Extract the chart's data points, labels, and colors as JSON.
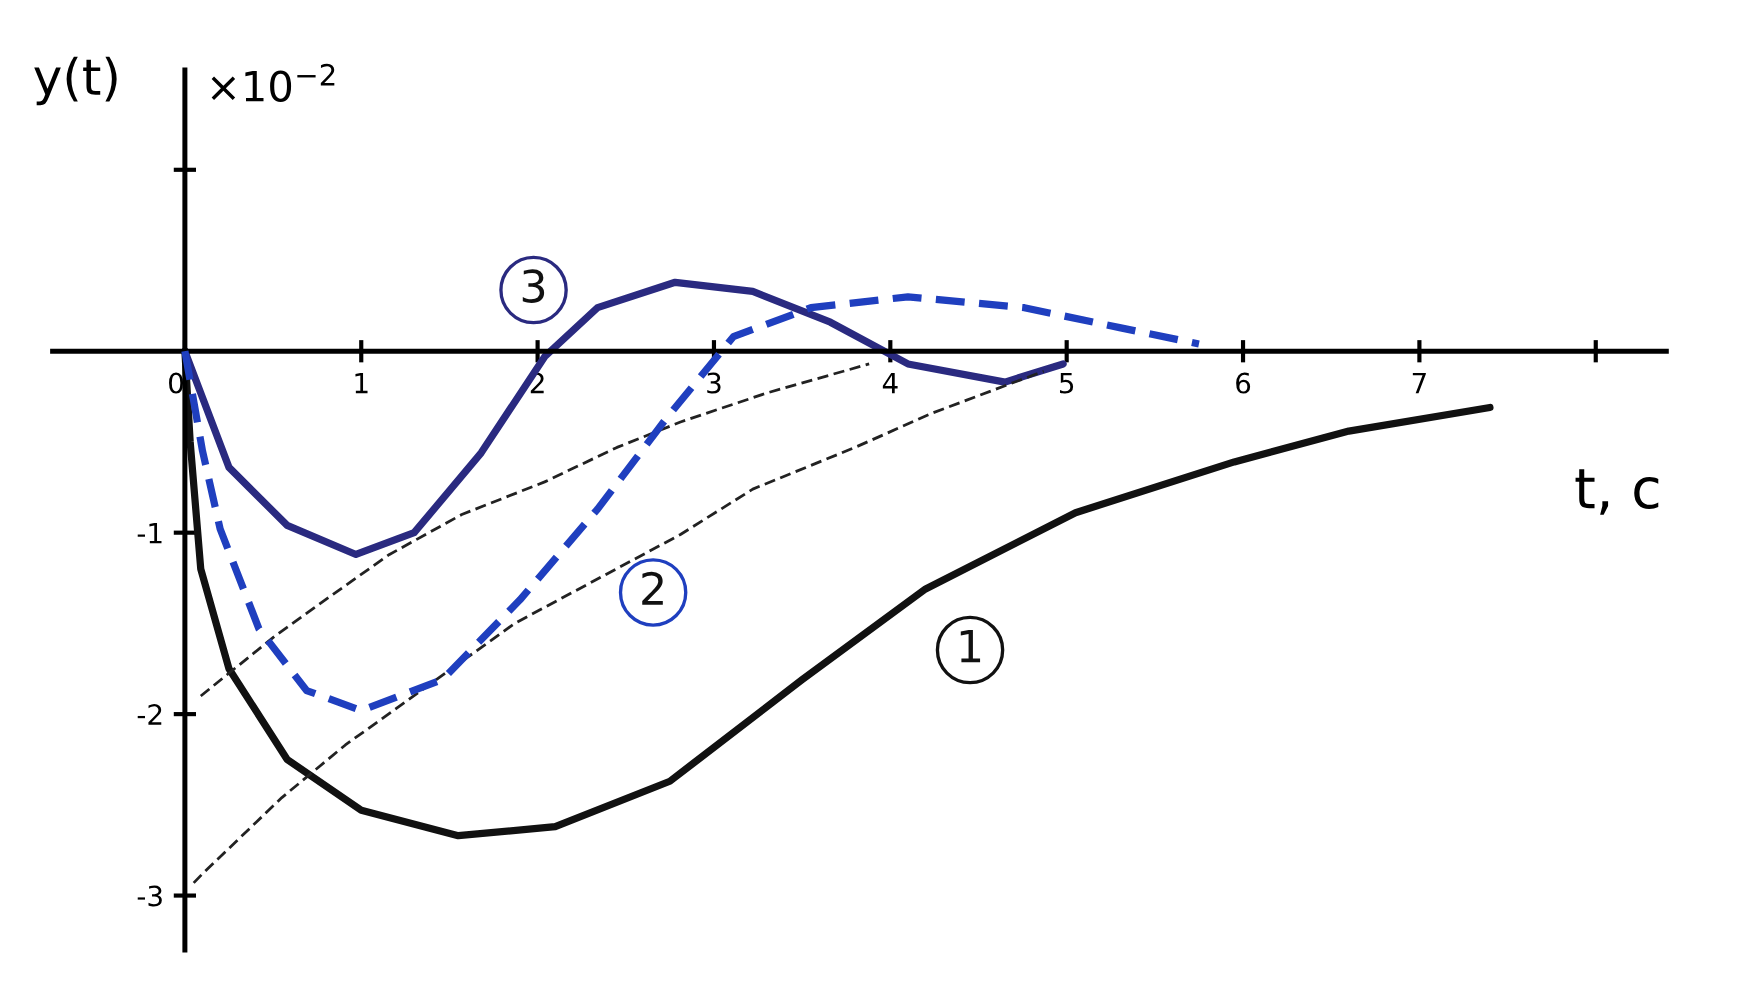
{
  "chart_data": {
    "type": "line",
    "ylabel": "y(t)",
    "xlabel": "t, c",
    "annotations": [
      "×10$^{−2}$"
    ],
    "xlim": [
      -0.75,
      8.4
    ],
    "ylim": [
      -3.3,
      1.55
    ],
    "xticks": [
      0,
      1,
      2,
      3,
      4,
      5,
      6,
      7,
      {
        "value": 8,
        "label": null
      }
    ],
    "yticks": [
      -3,
      -2,
      -1,
      {
        "value": 1,
        "label": null
      }
    ],
    "grid": false,
    "legend": false,
    "marker": "none",
    "series": [
      {
        "name": "1",
        "color": "#111111",
        "line_style": "solid",
        "x": [
          0,
          0.03,
          0.09,
          0.25,
          0.58,
          1.0,
          1.55,
          2.1,
          2.75,
          3.5,
          4.2,
          5.05,
          5.95,
          6.6,
          7.4
        ],
        "values": [
          0,
          -0.5,
          -1.2,
          -1.75,
          -2.25,
          -2.53,
          -2.67,
          -2.62,
          -2.37,
          -1.81,
          -1.31,
          -0.89,
          -0.61,
          -0.44,
          -0.31
        ]
      },
      {
        "name": "2",
        "color": "#1f3fbf",
        "line_style": "dashed",
        "x": [
          0,
          0.1,
          0.2,
          0.42,
          0.69,
          1.0,
          1.46,
          1.9,
          2.34,
          2.73,
          3.11,
          3.55,
          4.1,
          4.76,
          5.3,
          5.75
        ],
        "values": [
          0,
          -0.55,
          -0.98,
          -1.53,
          -1.87,
          -1.98,
          -1.81,
          -1.37,
          -0.87,
          -0.37,
          0.08,
          0.24,
          0.3,
          0.24,
          0.13,
          0.04
        ]
      },
      {
        "name": "3",
        "color": "#2a2a80",
        "line_style": "solid",
        "x": [
          0,
          0.25,
          0.58,
          0.97,
          1.3,
          1.68,
          2.04,
          2.34,
          2.78,
          3.22,
          3.66,
          4.1,
          4.65,
          4.98
        ],
        "values": [
          0,
          -0.64,
          -0.96,
          -1.12,
          -1.0,
          -0.56,
          -0.03,
          0.24,
          0.38,
          0.33,
          0.16,
          -0.07,
          -0.17,
          -0.07
        ]
      },
      {
        "color": "#222222",
        "line_style": "dashed",
        "x": [
          0.05,
          0.11,
          0.55,
          0.91,
          1.87,
          2.81,
          3.22,
          3.8,
          4.24,
          4.87
        ],
        "values": [
          -2.93,
          -2.87,
          -2.46,
          -2.17,
          -1.5,
          -1.01,
          -0.76,
          -0.53,
          -0.34,
          -0.11
        ]
      },
      {
        "color": "#222222",
        "line_style": "dashed",
        "x": [
          0.09,
          0.51,
          0.84,
          1.16,
          1.57,
          2.04,
          2.45,
          2.81,
          3.3,
          3.88
        ],
        "values": [
          -1.9,
          -1.57,
          -1.34,
          -1.12,
          -0.9,
          -0.72,
          -0.53,
          -0.39,
          -0.23,
          -0.07
        ]
      }
    ]
  }
}
